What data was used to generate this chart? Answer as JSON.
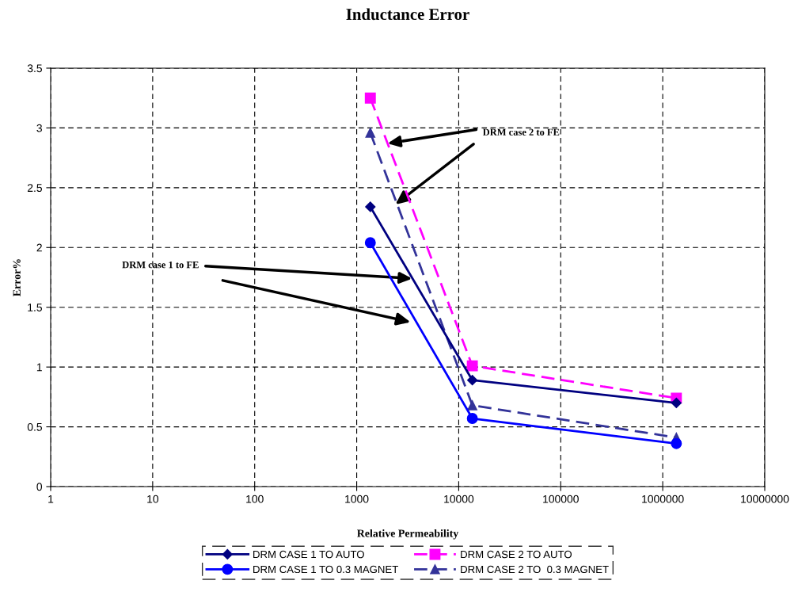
{
  "chart_data": {
    "type": "line",
    "title": "Inductance Error",
    "xlabel": "Relative Permeability",
    "ylabel": "Error%",
    "x": [
      1360,
      13600,
      1360000
    ],
    "series": [
      {
        "name": "DRM CASE 1 TO AUTO",
        "color": "#000080",
        "values": [
          2.34,
          0.89,
          0.7
        ],
        "marker": "diamond",
        "line_style": "solid"
      },
      {
        "name": "DRM CASE 2 TO AUTO",
        "color": "#ff00ff",
        "values": [
          3.25,
          1.01,
          0.74
        ],
        "marker": "square",
        "line_style": "dashed"
      },
      {
        "name": "DRM CASE 1 TO 0.3 MAGNET",
        "color": "#0000ff",
        "values": [
          2.04,
          0.57,
          0.36
        ],
        "marker": "circle",
        "line_style": "solid"
      },
      {
        "name": "DRM CASE 2 TO  0.3 MAGNET",
        "color": "#333399",
        "values": [
          2.96,
          0.68,
          0.41
        ],
        "marker": "triangle",
        "line_style": "dashed"
      }
    ],
    "log": "x",
    "xlim": [
      1,
      10000000
    ],
    "xticks": [
      {
        "value": 1,
        "label": "1"
      },
      {
        "value": 10,
        "label": "10"
      },
      {
        "value": 100,
        "label": "100"
      },
      {
        "value": 1000,
        "label": "1000"
      },
      {
        "value": 10000,
        "label": "10000"
      },
      {
        "value": 100000,
        "label": "100000"
      },
      {
        "value": 1000000,
        "label": "1000000"
      },
      {
        "value": 10000000,
        "label": "10000000"
      }
    ],
    "ylim": [
      0,
      3.5
    ],
    "yticks": [
      0,
      0.5,
      1,
      1.5,
      2,
      2.5,
      3,
      3.5
    ],
    "grid": true,
    "legend": "bottom",
    "annotations": [
      {
        "text": "DRM case 2 to FE",
        "x": 2000,
        "y": 2.87
      },
      {
        "text": "DRM case 1 to FE",
        "x": 3500,
        "y": 1.74
      }
    ]
  }
}
